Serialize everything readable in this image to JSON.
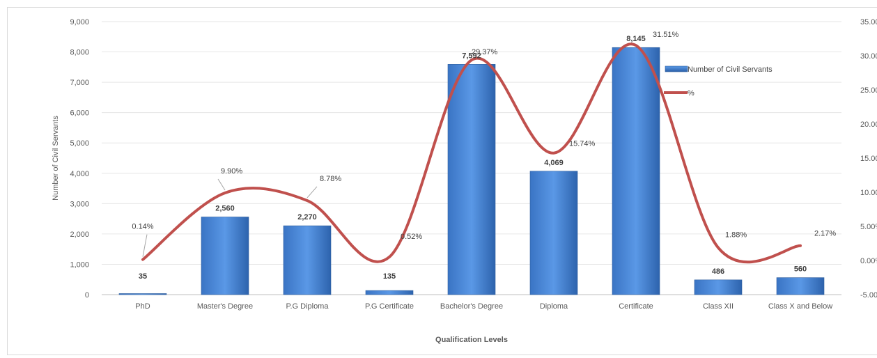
{
  "chart_data": {
    "type": "bar",
    "categories": [
      "PhD",
      "Master's Degree",
      "P.G Diploma",
      "P.G Certificate",
      "Bachelor's Degree",
      "Diploma",
      "Certificate",
      "Class XII",
      "Class X and Below"
    ],
    "series": [
      {
        "name": "Number of Civil Servants",
        "type": "bar",
        "axis": "left",
        "values": [
          35,
          2560,
          2270,
          135,
          7592,
          4069,
          8145,
          486,
          560
        ],
        "labels": [
          "35",
          "2,560",
          "2,270",
          "135",
          "7,592",
          "4,069",
          "8,145",
          "486",
          "560"
        ],
        "color": "#4a86d4"
      },
      {
        "name": "%",
        "type": "line",
        "smooth": true,
        "axis": "right",
        "values": [
          0.14,
          9.9,
          8.78,
          0.52,
          29.37,
          15.74,
          31.51,
          1.88,
          2.17
        ],
        "labels": [
          "0.14%",
          "9.90%",
          "8.78%",
          "0.52%",
          "29.37%",
          "15.74%",
          "31.51%",
          "1.88%",
          "2.17%"
        ],
        "color": "#c0504d"
      }
    ],
    "xlabel": "Qualification Levels",
    "ylabel": "Number of Civil Servants",
    "ylim": [
      0,
      9000
    ],
    "yticks": [
      "0",
      "1,000",
      "2,000",
      "3,000",
      "4,000",
      "5,000",
      "6,000",
      "7,000",
      "8,000",
      "9,000"
    ],
    "y2lim": [
      -5,
      35
    ],
    "y2ticks": [
      "-5.00%",
      "0.00%",
      "5.00%",
      "10.00%",
      "15.00%",
      "20.00%",
      "25.00%",
      "30.00%",
      "35.00%"
    ],
    "grid": true,
    "legend": "right"
  }
}
